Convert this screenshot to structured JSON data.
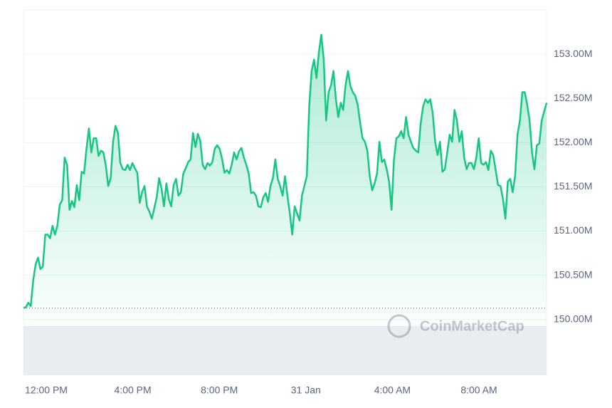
{
  "chart_data": {
    "type": "line",
    "color": "#16c784",
    "grid": true,
    "watermark": "CoinMarketCap",
    "x_labels": [
      "12:00 PM",
      "4:00 PM",
      "8:00 PM",
      "31 Jan",
      "4:00 AM",
      "8:00 AM"
    ],
    "ylim": [
      149.37,
      153.5
    ],
    "yticks": [
      {
        "value": 150,
        "label": "150.00M"
      },
      {
        "value": 150.5,
        "label": "150.50M"
      },
      {
        "value": 151,
        "label": "151.00M"
      },
      {
        "value": 151.5,
        "label": "151.50M"
      },
      {
        "value": 152,
        "label": "152.00M"
      },
      {
        "value": 152.5,
        "label": "152.50M"
      },
      {
        "value": 153,
        "label": "153.00M"
      }
    ],
    "values": [
      150.13,
      150.14,
      150.19,
      150.15,
      150.44,
      150.62,
      150.7,
      150.57,
      150.6,
      150.96,
      150.96,
      150.92,
      151.06,
      150.96,
      151.06,
      151.3,
      151.35,
      151.83,
      151.75,
      151.24,
      151.34,
      151.27,
      151.52,
      151.35,
      151.67,
      151.65,
      151.93,
      152.16,
      151.89,
      152.05,
      152.05,
      151.85,
      151.91,
      151.89,
      151.74,
      151.51,
      151.6,
      152.01,
      152.19,
      152.11,
      151.77,
      151.7,
      151.69,
      151.75,
      151.69,
      151.77,
      151.71,
      151.66,
      151.32,
      151.44,
      151.51,
      151.28,
      151.22,
      151.14,
      151.26,
      151.38,
      151.6,
      151.48,
      151.28,
      151.54,
      151.36,
      151.28,
      151.52,
      151.59,
      151.4,
      151.44,
      151.65,
      151.71,
      151.78,
      151.81,
      152.11,
      151.95,
      152.1,
      152.02,
      151.75,
      151.7,
      151.77,
      151.74,
      151.78,
      151.93,
      151.97,
      151.93,
      151.82,
      151.66,
      151.69,
      151.65,
      151.75,
      151.89,
      151.81,
      151.9,
      151.94,
      151.83,
      151.75,
      151.65,
      151.43,
      151.44,
      151.4,
      151.28,
      151.27,
      151.38,
      151.43,
      151.33,
      151.51,
      151.6,
      151.81,
      151.59,
      151.51,
      151.4,
      151.62,
      151.4,
      151.2,
      150.96,
      151.28,
      151.2,
      151.12,
      151.4,
      151.51,
      151.62,
      152.41,
      152.81,
      152.94,
      152.73,
      153.02,
      153.22,
      152.94,
      152.25,
      152.57,
      152.65,
      152.81,
      152.49,
      152.29,
      152.45,
      152.37,
      152.65,
      152.81,
      152.64,
      152.57,
      152.53,
      152.43,
      152.23,
      152.05,
      152.01,
      151.91,
      151.62,
      151.46,
      151.54,
      151.65,
      152.01,
      151.78,
      151.81,
      151.7,
      151.56,
      151.24,
      151.81,
      152.05,
      152.07,
      152.13,
      152.05,
      152.29,
      152.09,
      152.01,
      151.94,
      151.91,
      151.89,
      152.21,
      152.41,
      152.49,
      152.45,
      152.49,
      152.33,
      152.01,
      151.86,
      152.01,
      151.67,
      151.7,
      151.89,
      152.09,
      152.01,
      152.37,
      152.25,
      152.01,
      152.13,
      151.83,
      151.7,
      151.77,
      151.77,
      151.7,
      151.83,
      152.05,
      151.77,
      151.75,
      151.78,
      151.69,
      151.91,
      151.86,
      151.69,
      151.52,
      151.51,
      151.36,
      151.14,
      151.56,
      151.59,
      151.44,
      151.62,
      152.09,
      152.25,
      152.57,
      152.57,
      152.43,
      152.25,
      151.89,
      151.7,
      151.97,
      151.99,
      152.25,
      152.35,
      152.45
    ]
  }
}
